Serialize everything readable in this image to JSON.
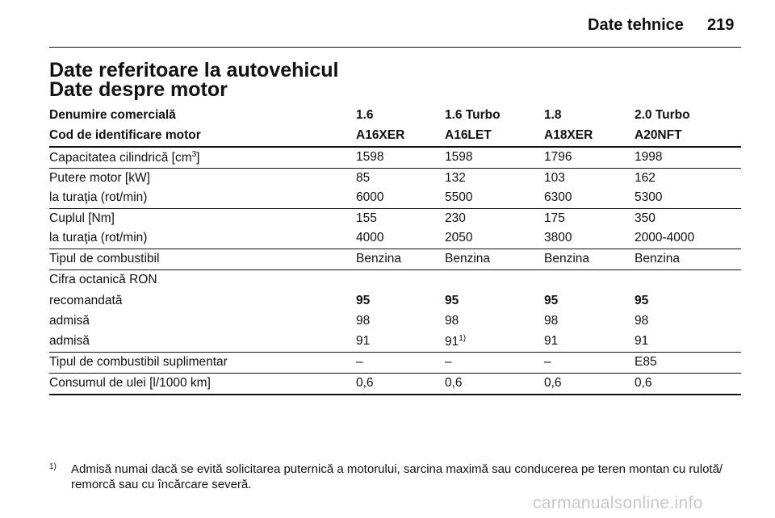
{
  "header": {
    "title": "Date tehnice",
    "page_number": "219"
  },
  "section_title": "Date referitoare la autovehicul",
  "subsection_title": "Date despre motor",
  "table": {
    "head": [
      [
        "Denumire comercială",
        "1.6",
        "1.6 Turbo",
        "1.8",
        "2.0 Turbo"
      ],
      [
        "Cod de identificare motor",
        "A16XER",
        "A16LET",
        "A18XER",
        "A20NFT"
      ]
    ],
    "displacement": {
      "label": "Capacitatea cilindrică [cm",
      "sup": "3",
      "suffix": "]",
      "values": [
        "1598",
        "1598",
        "1796",
        "1998"
      ]
    },
    "power": [
      "Putere motor [kW]",
      "85",
      "132",
      "103",
      "162"
    ],
    "power_rpm": [
      "la turaţia (rot/min)",
      "6000",
      "5500",
      "6300",
      "5300"
    ],
    "torque": [
      "Cuplul [Nm]",
      "155",
      "230",
      "175",
      "350"
    ],
    "torque_rpm": [
      "la turaţia (rot/min)",
      "4000",
      "2050",
      "3800",
      "2000-4000"
    ],
    "fuel": [
      "Tipul de combustibil",
      "Benzina",
      "Benzina",
      "Benzina",
      "Benzina"
    ],
    "octane_label": "Cifra octanică RON",
    "octane_recommended": [
      "recomandată",
      "95",
      "95",
      "95",
      "95"
    ],
    "octane_allowed_1": [
      "admisă",
      "98",
      "98",
      "98",
      "98"
    ],
    "octane_allowed_2": {
      "label": "admisă",
      "values": [
        "91",
        "91",
        "91",
        "91"
      ],
      "footnote_col": "1)"
    },
    "alt_fuel": [
      "Tipul de combustibil suplimentar",
      "–",
      "–",
      "–",
      "E85"
    ],
    "oil": [
      "Consumul de ulei [l/1000 km]",
      "0,6",
      "0,6",
      "0,6",
      "0,6"
    ]
  },
  "footnote": {
    "mark": "1)",
    "text": "Admisă numai dacă se evită solicitarea puternică a motorului, sarcina maximă sau conducerea pe teren montan cu rulotă/ remorcă sau cu încărcare severă."
  },
  "watermark": "carmanualsonline.info"
}
